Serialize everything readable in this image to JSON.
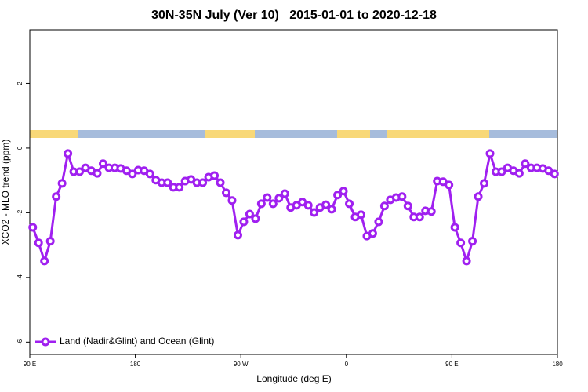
{
  "chart_data": {
    "type": "line",
    "title": "30N-35N July (Ver 10)   2015-01-01 to 2020-12-18",
    "x_label": "Longitude (deg E)",
    "y_label": "XCO2 - MLO trend (ppm)",
    "x": [
      92.5,
      97.5,
      102.5,
      107.5,
      112.5,
      117.5,
      122.5,
      127.5,
      132.5,
      137.5,
      142.5,
      147.5,
      152.5,
      157.5,
      162.5,
      167.5,
      172.5,
      177.5,
      182.5,
      187.5,
      192.5,
      197.5,
      202.5,
      207.5,
      212.5,
      217.5,
      222.5,
      227.5,
      232.5,
      237.5,
      242.5,
      247.5,
      252.5,
      257.5,
      262.5,
      267.5,
      272.5,
      277.5,
      282.5,
      287.5,
      292.5,
      297.5,
      302.5,
      307.5,
      312.5,
      317.5,
      322.5,
      327.5,
      332.5,
      337.5,
      342.5,
      347.5,
      352.5,
      357.5,
      362.5,
      367.5,
      372.5,
      377.5,
      382.5,
      387.5,
      392.5,
      397.5,
      402.5,
      407.5,
      412.5,
      417.5,
      422.5,
      427.5,
      432.5,
      437.5,
      442.5,
      447.5,
      452.5,
      457.5,
      462.5,
      467.5,
      472.5,
      477.5,
      482.5,
      487.5,
      492.5,
      497.5,
      502.5,
      507.5,
      512.5,
      517.5,
      522.5,
      527.5,
      532.5,
      537.5
    ],
    "series": [
      {
        "name": "Land (Nadir&Glint) and Ocean (Glint)",
        "color": "#a020f0",
        "values": [
          -2.45,
          -2.93,
          -3.49,
          -2.88,
          -1.5,
          -1.09,
          -0.17,
          -0.73,
          -0.73,
          -0.61,
          -0.7,
          -0.78,
          -0.48,
          -0.61,
          -0.61,
          -0.63,
          -0.7,
          -0.8,
          -0.68,
          -0.7,
          -0.8,
          -0.99,
          -1.07,
          -1.07,
          -1.21,
          -1.21,
          -1.02,
          -0.97,
          -1.07,
          -1.07,
          -0.9,
          -0.85,
          -1.07,
          -1.38,
          -1.62,
          -2.69,
          -2.28,
          -2.04,
          -2.18,
          -1.72,
          -1.53,
          -1.72,
          -1.55,
          -1.41,
          -1.84,
          -1.77,
          -1.67,
          -1.77,
          -1.99,
          -1.84,
          -1.75,
          -1.89,
          -1.45,
          -1.33,
          -1.72,
          -2.13,
          -2.06,
          -2.72,
          -2.64,
          -2.28,
          -1.79,
          -1.6,
          -1.53,
          -1.5,
          -1.79,
          -2.13,
          -2.13,
          -1.94,
          -1.96,
          -1.02,
          -1.04,
          -1.14,
          -2.45,
          -2.93,
          -3.49,
          -2.88,
          -1.5,
          -1.09,
          -0.17,
          -0.73,
          -0.73,
          -0.61,
          -0.7,
          -0.78,
          -0.48,
          -0.61,
          -0.61,
          -0.63,
          -0.7,
          -0.8
        ]
      }
    ],
    "xlim": [
      90,
      540
    ],
    "xticks": [
      {
        "value": 90,
        "label": "90 E"
      },
      180,
      {
        "value": 270,
        "label": "90 W"
      },
      {
        "value": 360,
        "label": "0"
      },
      {
        "value": 450,
        "label": "90 E"
      },
      {
        "value": 540,
        "label": "180"
      }
    ],
    "ylim": [
      -6.38,
      3.66
    ],
    "yticks": [
      -6,
      -4,
      -2,
      0,
      2
    ],
    "legend": "bottom-left"
  }
}
